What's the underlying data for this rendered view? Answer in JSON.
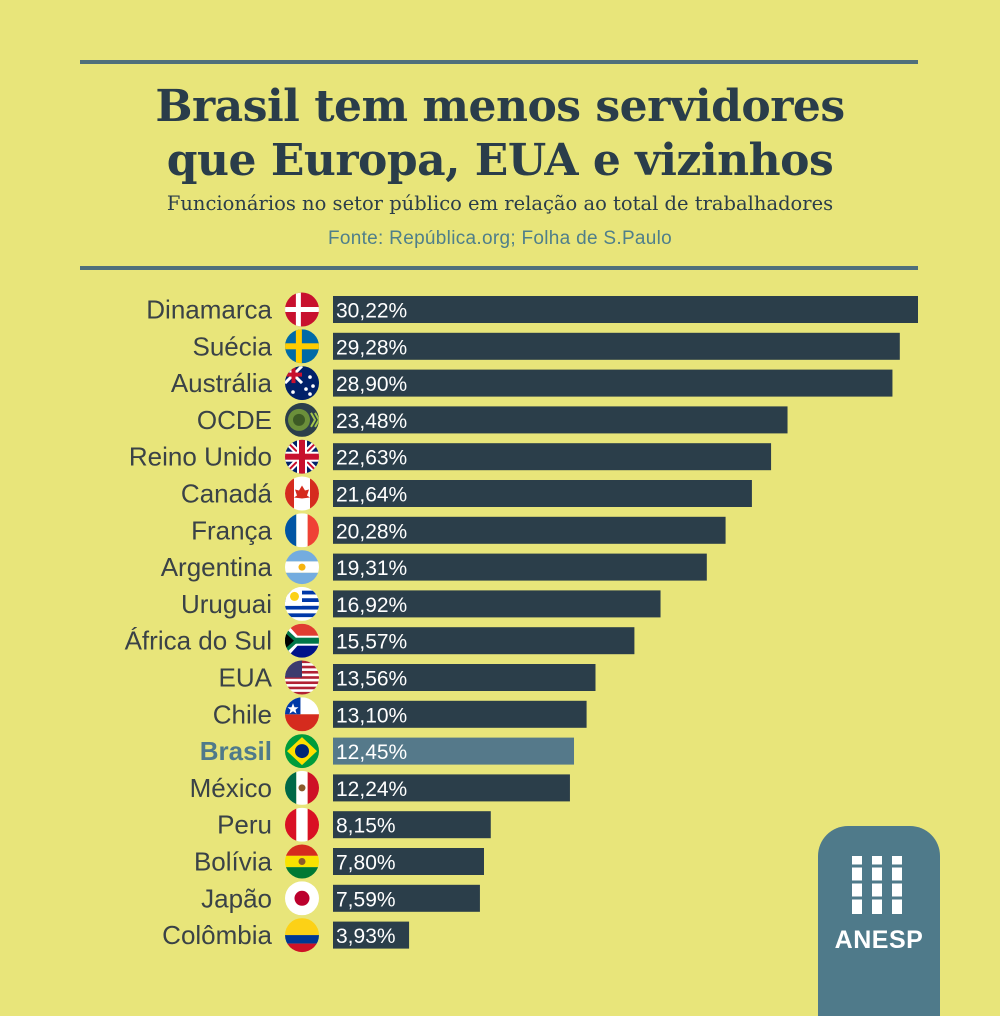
{
  "header": {
    "title_line1": "Brasil tem menos servidores",
    "title_line2": "que Europa, EUA e vizinhos",
    "subtitle": "Funcionários no setor público em relação ao total de trabalhadores",
    "source": "Fonte: República.org; Folha de S.Paulo"
  },
  "brand": {
    "name": "ANESP"
  },
  "colors": {
    "background": "#e8e57a",
    "bar": "#2b3e4a",
    "highlight_bar": "#55798a",
    "highlight_label": "#4f7a8a",
    "rule": "#4f6f7b"
  },
  "chart_data": {
    "type": "bar",
    "orientation": "horizontal",
    "categories": [
      "Dinamarca",
      "Suécia",
      "Austrália",
      "OCDE",
      "Reino Unido",
      "Canadá",
      "França",
      "Argentina",
      "Uruguai",
      "África do Sul",
      "EUA",
      "Chile",
      "Brasil",
      "México",
      "Peru",
      "Bolívia",
      "Japão",
      "Colômbia"
    ],
    "values": [
      30.22,
      29.28,
      28.9,
      23.48,
      22.63,
      21.64,
      20.28,
      19.31,
      16.92,
      15.57,
      13.56,
      13.1,
      12.45,
      12.24,
      8.15,
      7.8,
      7.59,
      3.93
    ],
    "value_labels": [
      "30,22%",
      "29,28%",
      "28,90%",
      "23,48%",
      "22,63%",
      "21,64%",
      "20,28%",
      "19,31%",
      "16,92%",
      "15,57%",
      "13,56%",
      "13,10%",
      "12,45%",
      "12,24%",
      "8,15%",
      "7,80%",
      "7,59%",
      "3,93%"
    ],
    "flag_icons": [
      "denmark-flag-icon",
      "sweden-flag-icon",
      "australia-flag-icon",
      "oecd-logo-icon",
      "united-kingdom-flag-icon",
      "canada-flag-icon",
      "france-flag-icon",
      "argentina-flag-icon",
      "uruguay-flag-icon",
      "south-africa-flag-icon",
      "usa-flag-icon",
      "chile-flag-icon",
      "brazil-flag-icon",
      "mexico-flag-icon",
      "peru-flag-icon",
      "bolivia-flag-icon",
      "japan-flag-icon",
      "colombia-flag-icon"
    ],
    "highlight": "Brasil",
    "xlim": [
      0,
      30.22
    ],
    "grid": false,
    "legend": "none",
    "title": "Brasil tem menos servidores que Europa, EUA e vizinhos",
    "subtitle": "Funcionários no setor público em relação ao total de trabalhadores"
  }
}
